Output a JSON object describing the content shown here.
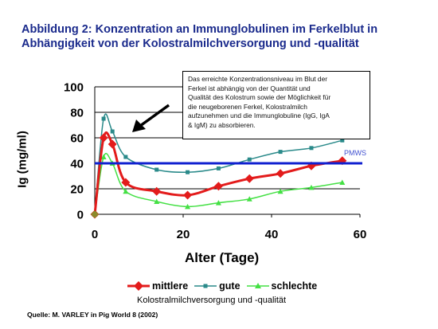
{
  "title": {
    "line1": "Abbildung 2: Konzentration an Immunglobulinen im Ferkelblut in",
    "line2": "Abhängigkeit von der Kolostralmilchversorgung und -qualität"
  },
  "note": {
    "lines": [
      "Das erreichte Konzentrationsniveau im Blut der",
      "Ferkel ist abhängig von der Quantität und",
      "Qualität des Kolostrum sowie der Möglichkeit für",
      "die neugeborenen Ferkel, Kolostralmilch",
      "aufzunehmen und die Immunglobuline (IgG, IgA",
      "& IgM) zu absorbieren."
    ]
  },
  "legend": {
    "mittlere": "mittlere",
    "gute": "gute",
    "schlechte": "schlechte"
  },
  "subtitle": "Kolostralmilchversorgung und -qualität",
  "source": "Quelle: M. VARLEY  in Pig World 8 (2002)",
  "colors": {
    "title": "#1a2a8c",
    "mittlere": "#e31b1b",
    "gute": "#2a8a8a",
    "schlechte": "#44e044",
    "pmws_line": "#1020d0",
    "pmws_label": "#4050d0"
  },
  "chart_data": {
    "type": "line",
    "xlabel": "Alter (Tage)",
    "ylabel": "Ig (mg/ml)",
    "xlim": [
      0,
      60
    ],
    "ylim": [
      0,
      100
    ],
    "xticks": [
      "0",
      "20",
      "40",
      "60"
    ],
    "yticks": [
      "0",
      "20",
      "40",
      "60",
      "80",
      "100"
    ],
    "grid": "horizontal",
    "legend_position": "bottom",
    "reference_line": {
      "label": "PMWS",
      "y": 40
    },
    "series": [
      {
        "name": "mittlere",
        "marker": "diamond",
        "x": [
          0,
          2,
          4,
          7,
          14,
          21,
          28,
          35,
          42,
          49,
          56
        ],
        "y": [
          0,
          60,
          55,
          25,
          18,
          15,
          22,
          28,
          32,
          38,
          42
        ]
      },
      {
        "name": "gute",
        "marker": "square",
        "x": [
          0,
          2,
          4,
          7,
          14,
          21,
          28,
          35,
          42,
          49,
          56
        ],
        "y": [
          0,
          75,
          65,
          45,
          35,
          33,
          36,
          43,
          49,
          52,
          58
        ]
      },
      {
        "name": "schlechte",
        "marker": "triangle",
        "x": [
          0,
          2,
          4,
          7,
          14,
          21,
          28,
          35,
          42,
          49,
          56
        ],
        "y": [
          0,
          45,
          40,
          18,
          10,
          6,
          9,
          12,
          18,
          21,
          25
        ]
      }
    ]
  }
}
